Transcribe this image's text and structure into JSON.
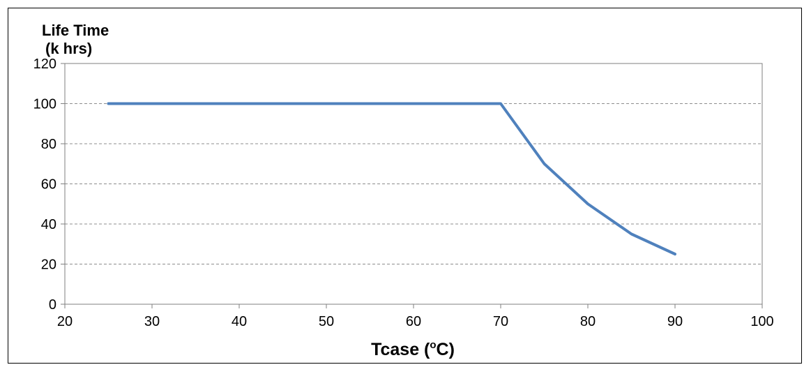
{
  "chart_data": {
    "type": "line",
    "title": "",
    "ylabel_line1": "Life Time",
    "ylabel_line2": "(k hrs)",
    "xlabel_main": "Tcase (",
    "xlabel_sup": "o",
    "xlabel_end": "C)",
    "xlim": [
      20,
      100
    ],
    "ylim": [
      0,
      120
    ],
    "x_ticks": [
      20,
      30,
      40,
      50,
      60,
      70,
      80,
      90,
      100
    ],
    "y_ticks": [
      0,
      20,
      40,
      60,
      80,
      100,
      120
    ],
    "grid": "horizontal-dashed",
    "legend": "none",
    "series": [
      {
        "x": [
          25,
          70,
          75,
          80,
          85,
          90
        ],
        "y": [
          100,
          100,
          70,
          50,
          35,
          25
        ],
        "color": "#4f81bd"
      }
    ]
  }
}
